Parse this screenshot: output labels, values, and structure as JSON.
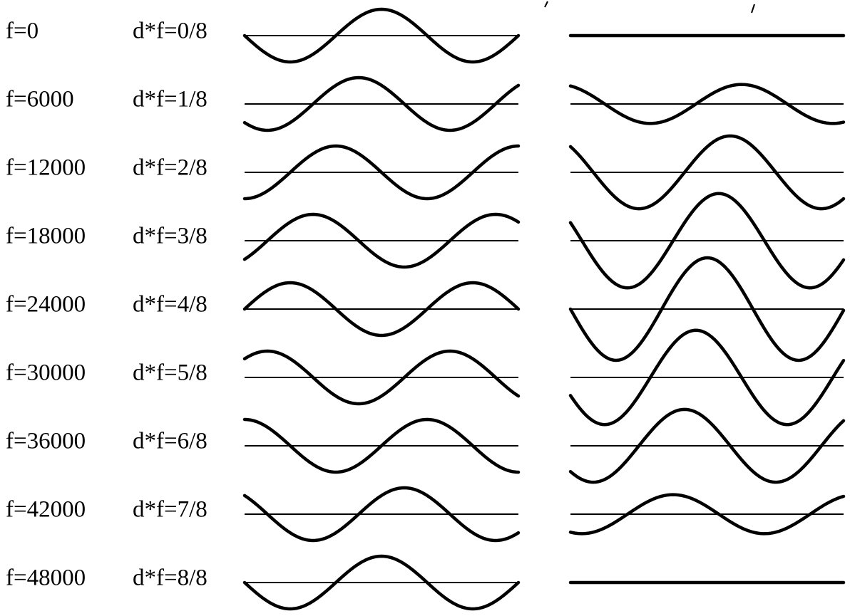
{
  "colors": {
    "stroke": "#000000",
    "background": "#ffffff"
  },
  "rows": [
    {
      "freq_label": "f=0",
      "phase_label": "d*f=0/8",
      "phase": 0,
      "left_wave": "sine-1.5-periods",
      "right_amplitude": 0.0
    },
    {
      "freq_label": "f=6000",
      "phase_label": "d*f=1/8",
      "phase": 1,
      "left_wave": "sine-1.5-periods",
      "right_amplitude": 0.38
    },
    {
      "freq_label": "f=12000",
      "phase_label": "d*f=2/8",
      "phase": 2,
      "left_wave": "sine-1.5-periods",
      "right_amplitude": 0.71
    },
    {
      "freq_label": "f=18000",
      "phase_label": "d*f=3/8",
      "phase": 3,
      "left_wave": "sine-1.5-periods",
      "right_amplitude": 0.92
    },
    {
      "freq_label": "f=24000",
      "phase_label": "d*f=4/8",
      "phase": 4,
      "left_wave": "sine-1.5-periods",
      "right_amplitude": 1.0
    },
    {
      "freq_label": "f=30000",
      "phase_label": "d*f=5/8",
      "phase": 5,
      "left_wave": "sine-1.5-periods",
      "right_amplitude": 0.92
    },
    {
      "freq_label": "f=36000",
      "phase_label": "d*f=6/8",
      "phase": 6,
      "left_wave": "sine-1.5-periods",
      "right_amplitude": 0.71
    },
    {
      "freq_label": "f=42000",
      "phase_label": "d*f=7/8",
      "phase": 7,
      "left_wave": "sine-1.5-periods",
      "right_amplitude": 0.38
    },
    {
      "freq_label": "f=48000",
      "phase_label": "d*f=8/8",
      "phase": 8,
      "left_wave": "sine-1.5-periods",
      "right_amplitude": 0.0
    }
  ]
}
